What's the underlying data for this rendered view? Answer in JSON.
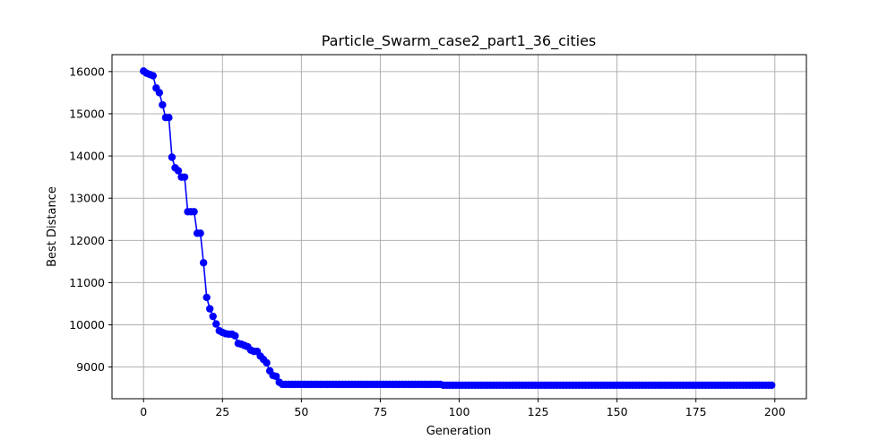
{
  "chart_data": {
    "type": "line",
    "title": "Particle_Swarm_case2_part1_36_cities",
    "xlabel": "Generation",
    "ylabel": "Best Distance",
    "xlim": [
      -10,
      210
    ],
    "ylim": [
      8250,
      16400
    ],
    "xticks": [
      0,
      25,
      50,
      75,
      100,
      125,
      150,
      175,
      200
    ],
    "yticks": [
      9000,
      10000,
      11000,
      12000,
      13000,
      14000,
      15000,
      16000
    ],
    "grid": true,
    "series": [
      {
        "color": "#0000ff",
        "marker": "circle",
        "x": [
          0,
          1,
          2,
          3,
          4,
          5,
          6,
          7,
          8,
          9,
          10,
          11,
          12,
          13,
          14,
          15,
          16,
          17,
          18,
          19,
          20,
          21,
          22,
          23,
          24,
          25,
          26,
          27,
          28,
          29,
          30,
          31,
          32,
          33,
          34,
          35,
          36,
          37,
          38,
          39,
          40,
          41,
          42,
          43,
          44,
          45,
          46,
          47,
          48,
          49,
          50,
          51,
          52,
          53,
          54,
          55,
          56,
          57,
          58,
          59,
          60,
          61,
          62,
          63,
          64,
          65,
          66,
          67,
          68,
          69,
          70,
          71,
          72,
          73,
          74,
          75,
          76,
          77,
          78,
          79,
          80,
          81,
          82,
          83,
          84,
          85,
          86,
          87,
          88,
          89,
          90,
          91,
          92,
          93,
          94,
          95,
          96,
          97,
          98,
          99,
          100,
          101,
          102,
          103,
          104,
          105,
          106,
          107,
          108,
          109,
          110,
          111,
          112,
          113,
          114,
          115,
          116,
          117,
          118,
          119,
          120,
          121,
          122,
          123,
          124,
          125,
          126,
          127,
          128,
          129,
          130,
          131,
          132,
          133,
          134,
          135,
          136,
          137,
          138,
          139,
          140,
          141,
          142,
          143,
          144,
          145,
          146,
          147,
          148,
          149,
          150,
          151,
          152,
          153,
          154,
          155,
          156,
          157,
          158,
          159,
          160,
          161,
          162,
          163,
          164,
          165,
          166,
          167,
          168,
          169,
          170,
          171,
          172,
          173,
          174,
          175,
          176,
          177,
          178,
          179,
          180,
          181,
          182,
          183,
          184,
          185,
          186,
          187,
          188,
          189,
          190,
          191,
          192,
          193,
          194,
          195,
          196,
          197,
          198,
          199
        ],
        "y": [
          16010,
          15960,
          15930,
          15900,
          15610,
          15500,
          15210,
          14910,
          14910,
          13970,
          13720,
          13650,
          13500,
          13500,
          12680,
          12680,
          12680,
          12170,
          12170,
          11470,
          10650,
          10380,
          10200,
          10020,
          9860,
          9820,
          9790,
          9780,
          9780,
          9740,
          9560,
          9540,
          9510,
          9480,
          9400,
          9370,
          9370,
          9260,
          9180,
          9100,
          8910,
          8800,
          8780,
          8640,
          8590,
          8590,
          8590,
          8590,
          8590,
          8590,
          8590,
          8590,
          8590,
          8590,
          8590,
          8590,
          8590,
          8590,
          8590,
          8590,
          8590,
          8590,
          8590,
          8590,
          8590,
          8590,
          8590,
          8590,
          8590,
          8590,
          8590,
          8590,
          8590,
          8590,
          8590,
          8590,
          8590,
          8590,
          8590,
          8590,
          8590,
          8590,
          8590,
          8590,
          8590,
          8590,
          8590,
          8590,
          8590,
          8590,
          8590,
          8590,
          8590,
          8590,
          8590,
          8570,
          8570,
          8570,
          8570,
          8570,
          8570,
          8570,
          8570,
          8570,
          8570,
          8570,
          8570,
          8570,
          8570,
          8570,
          8570,
          8570,
          8570,
          8570,
          8570,
          8570,
          8570,
          8570,
          8570,
          8570,
          8570,
          8570,
          8570,
          8570,
          8570,
          8570,
          8570,
          8570,
          8570,
          8570,
          8570,
          8570,
          8570,
          8570,
          8570,
          8570,
          8570,
          8570,
          8570,
          8570,
          8570,
          8570,
          8570,
          8570,
          8570,
          8570,
          8570,
          8570,
          8570,
          8570,
          8570,
          8570,
          8570,
          8570,
          8570,
          8570,
          8570,
          8570,
          8570,
          8570,
          8570,
          8570,
          8570,
          8570,
          8570,
          8570,
          8570,
          8570,
          8570,
          8570,
          8570,
          8570,
          8570,
          8570,
          8570,
          8570,
          8570,
          8570,
          8570,
          8570,
          8570,
          8570,
          8570,
          8570,
          8570,
          8570,
          8570,
          8570,
          8570,
          8570,
          8570,
          8570,
          8570,
          8570,
          8570,
          8570,
          8570,
          8570,
          8570,
          8570
        ]
      }
    ]
  }
}
